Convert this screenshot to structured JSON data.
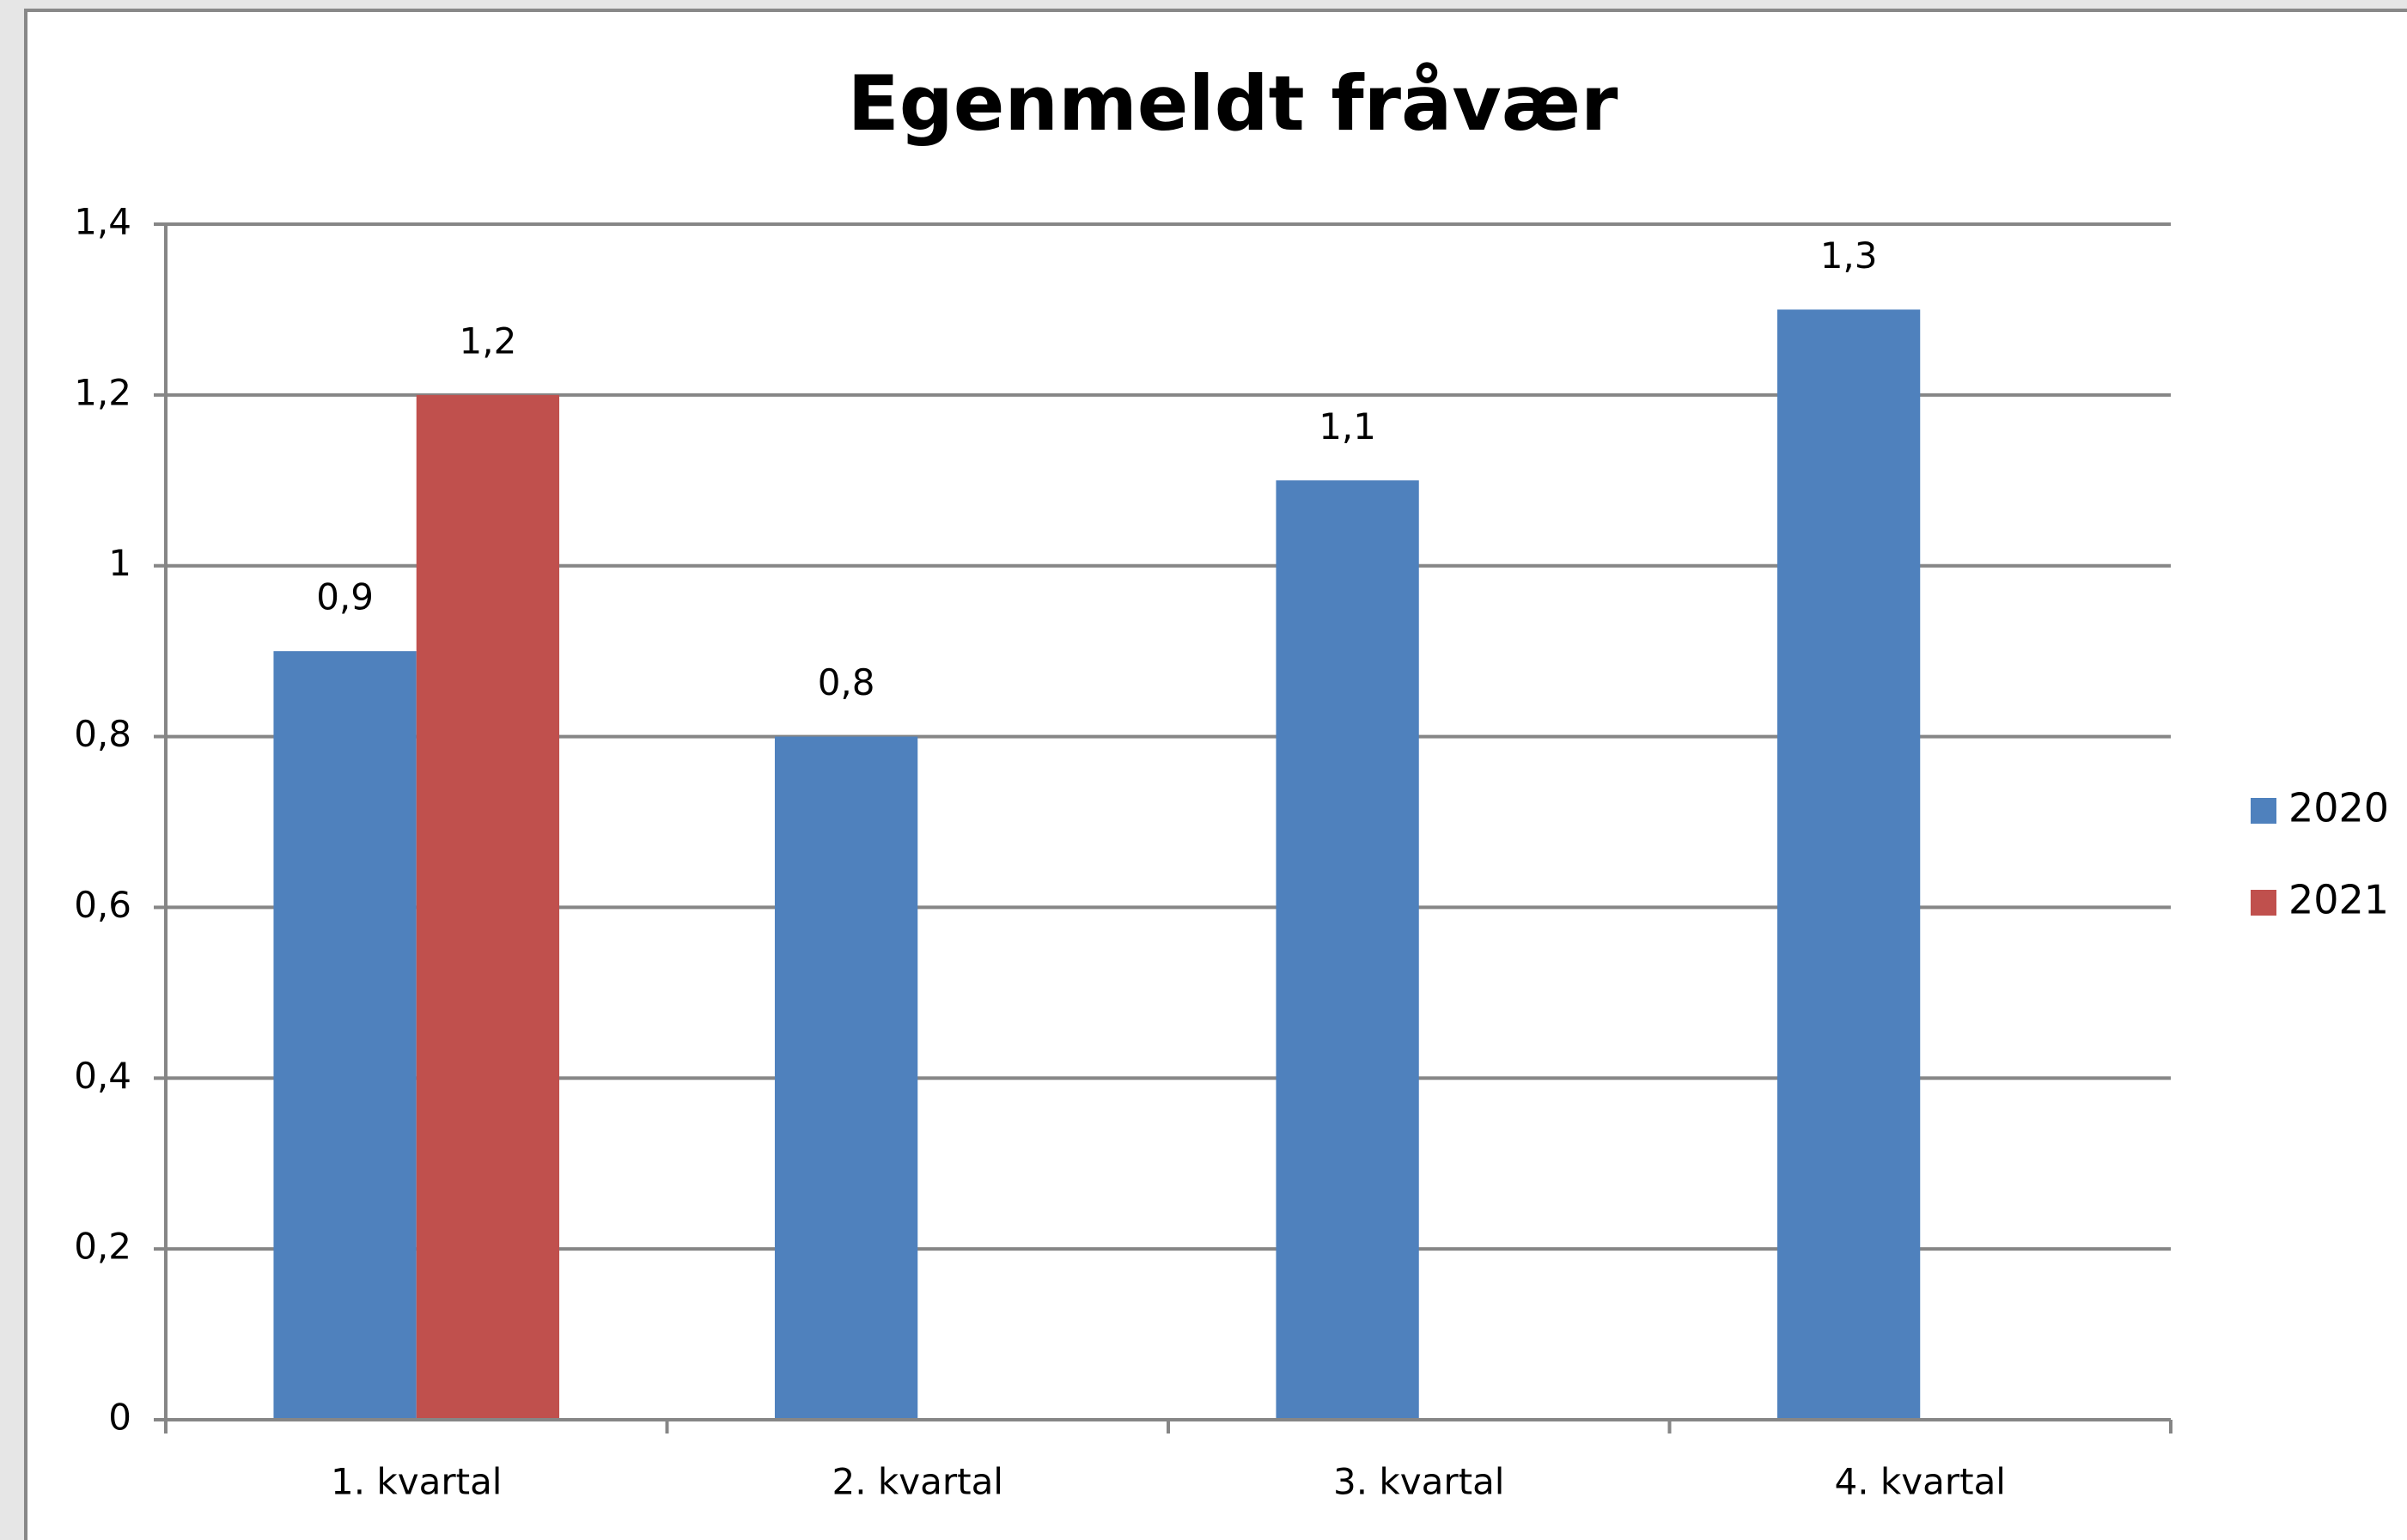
{
  "chart_data": {
    "type": "bar",
    "title": "Egenmeldt fråvær",
    "categories": [
      "1. kvartal",
      "2. kvartal",
      "3. kvartal",
      "4. kvartal"
    ],
    "series": [
      {
        "name": "2020",
        "color": "#4f81bd",
        "values": [
          0.9,
          0.8,
          1.1,
          1.3
        ],
        "value_labels": [
          "0,9",
          "0,8",
          "1,1",
          "1,3"
        ]
      },
      {
        "name": "2021",
        "color": "#c0504d",
        "values": [
          1.2,
          null,
          null,
          null
        ],
        "value_labels": [
          "1,2",
          null,
          null,
          null
        ]
      }
    ],
    "ylim": [
      0,
      1.4
    ],
    "yticks": [
      0,
      {
        "value": 0.2,
        "label": "0,2"
      },
      {
        "value": 0.4,
        "label": "0,4"
      },
      {
        "value": 0.6,
        "label": "0,6"
      },
      {
        "value": 0.8,
        "label": "0,8"
      },
      1,
      {
        "value": 1.2,
        "label": "1,2"
      },
      {
        "value": 1.4,
        "label": "1,4"
      }
    ],
    "grid": true,
    "legend": "right"
  }
}
